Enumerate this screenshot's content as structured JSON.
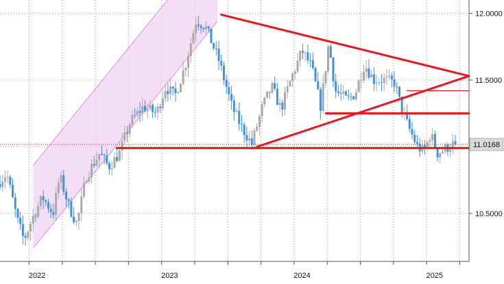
{
  "colors": {
    "background": "#ffffff",
    "up_candle": "#a9a9a9",
    "down_candle": "#3f92e0",
    "trendline": "#f0131e",
    "channel_fill": "#efd3f1",
    "channel_border": "#d98ee0",
    "grid": "#9a9a9a",
    "axis": "#555555",
    "price_badge": "#d9d9d9"
  },
  "chart_data": {
    "type": "candlestick",
    "title": "",
    "xlabel": "",
    "ylabel": "",
    "y_axis_side": "right",
    "ylim": [
      10.14,
      12.1
    ],
    "xlim": [
      2021.78,
      2025.32
    ],
    "yticks": [
      {
        "value": 12.0,
        "label": "12.0000"
      },
      {
        "value": 11.5,
        "label": "11.5000"
      },
      {
        "value": 11.0,
        "label": "11.0000"
      },
      {
        "value": 10.5,
        "label": "10.5000"
      }
    ],
    "xtick_labels": [
      {
        "x": 2022.0,
        "label": "2022"
      },
      {
        "x": 2023.0,
        "label": "2023"
      },
      {
        "x": 2024.0,
        "label": "2024"
      },
      {
        "x": 2025.0,
        "label": "2025"
      }
    ],
    "grid_verticals": [
      2022.0,
      2022.25,
      2022.5,
      2022.75,
      2023.0,
      2023.25,
      2023.5,
      2023.75,
      2024.0,
      2024.25,
      2024.5,
      2024.75,
      2025.0,
      2025.25
    ],
    "grid": true,
    "last_price": {
      "value": 11.0168,
      "label": "11.0168"
    },
    "anchors": [
      [
        2021.78,
        10.72
      ],
      [
        2021.85,
        10.8
      ],
      [
        2021.93,
        10.45
      ],
      [
        2021.98,
        10.3
      ],
      [
        2022.05,
        10.48
      ],
      [
        2022.12,
        10.62
      ],
      [
        2022.2,
        10.5
      ],
      [
        2022.25,
        10.78
      ],
      [
        2022.32,
        10.55
      ],
      [
        2022.38,
        10.42
      ],
      [
        2022.45,
        10.78
      ],
      [
        2022.55,
        10.95
      ],
      [
        2022.62,
        10.85
      ],
      [
        2022.7,
        10.95
      ],
      [
        2022.78,
        11.18
      ],
      [
        2022.88,
        11.3
      ],
      [
        2022.98,
        11.25
      ],
      [
        2023.05,
        11.45
      ],
      [
        2023.12,
        11.38
      ],
      [
        2023.2,
        11.62
      ],
      [
        2023.28,
        11.95
      ],
      [
        2023.35,
        11.9
      ],
      [
        2023.45,
        11.65
      ],
      [
        2023.55,
        11.3
      ],
      [
        2023.62,
        11.15
      ],
      [
        2023.7,
        11.02
      ],
      [
        2023.78,
        11.3
      ],
      [
        2023.85,
        11.45
      ],
      [
        2023.92,
        11.28
      ],
      [
        2024.0,
        11.52
      ],
      [
        2024.08,
        11.72
      ],
      [
        2024.15,
        11.6
      ],
      [
        2024.22,
        11.3
      ],
      [
        2024.28,
        11.78
      ],
      [
        2024.33,
        11.42
      ],
      [
        2024.42,
        11.35
      ],
      [
        2024.48,
        11.4
      ],
      [
        2024.55,
        11.62
      ],
      [
        2024.62,
        11.5
      ],
      [
        2024.7,
        11.5
      ],
      [
        2024.78,
        11.48
      ],
      [
        2024.82,
        11.32
      ],
      [
        2024.88,
        11.15
      ],
      [
        2024.95,
        11.0
      ],
      [
        2025.0,
        10.96
      ],
      [
        2025.05,
        11.1
      ],
      [
        2025.1,
        10.95
      ],
      [
        2025.15,
        10.98
      ],
      [
        2025.22,
        11.02
      ]
    ],
    "candle_step": 0.0192,
    "drawings": {
      "channel": {
        "lower": [
          [
            2022.03,
            10.24
          ],
          [
            2023.42,
            11.94
          ]
        ],
        "upper": [
          [
            2022.03,
            10.86
          ],
          [
            2023.42,
            12.56
          ]
        ]
      },
      "lines": [
        {
          "from": [
            2023.45,
            11.99
          ],
          "to": [
            2025.32,
            11.53
          ],
          "weight": "thick"
        },
        {
          "from": [
            2023.72,
            11.0
          ],
          "to": [
            2025.32,
            11.53
          ],
          "weight": "thick"
        },
        {
          "from": [
            2022.66,
            10.99
          ],
          "to": [
            2025.32,
            10.99
          ],
          "weight": "thick"
        },
        {
          "from": [
            2024.24,
            11.25
          ],
          "to": [
            2025.32,
            11.25
          ],
          "weight": "thick"
        },
        {
          "from": [
            2024.85,
            11.42
          ],
          "to": [
            2025.32,
            11.42
          ],
          "weight": "thin"
        }
      ]
    }
  }
}
